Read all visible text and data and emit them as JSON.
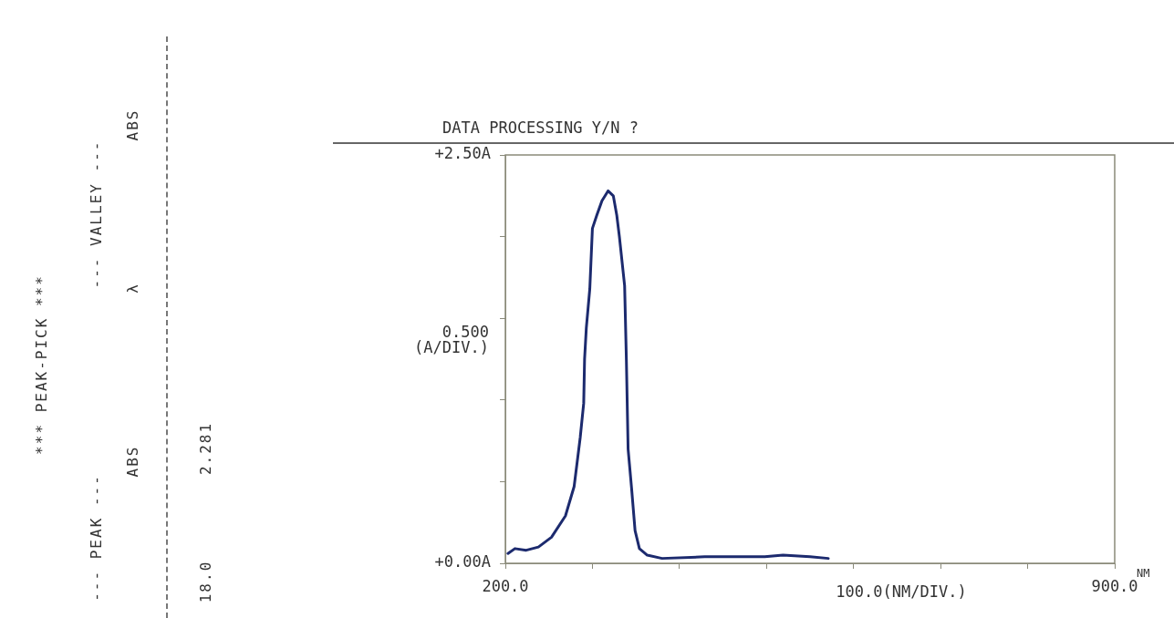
{
  "chart_data": {
    "type": "line",
    "title": "DATA PROCESSING Y/N ?",
    "xlabel": "100.0(NM/DIV.)",
    "ylabel": "0.500\n(A/DIV.)",
    "annotations": [
      "*** PEAK-PICK ***",
      "--- PEAK ---",
      "--- VALLEY ---",
      "ABS",
      "λ",
      "ABS",
      "18.0",
      "2.281",
      "NM"
    ],
    "xlim": [
      200,
      900
    ],
    "xticks": [
      {
        "value": 200,
        "label": "200.0"
      },
      {
        "value": 300,
        "label": null
      },
      {
        "value": 400,
        "label": null
      },
      {
        "value": 500,
        "label": null
      },
      {
        "value": 600,
        "label": null
      },
      {
        "value": 700,
        "label": null
      },
      {
        "value": 800,
        "label": null
      },
      {
        "value": 900,
        "label": "900.0"
      }
    ],
    "ylim": [
      0,
      2.5
    ],
    "yticks": [
      {
        "value": 0,
        "label": "+0.00A"
      },
      {
        "value": 0.5,
        "label": null
      },
      {
        "value": 1,
        "label": null
      },
      {
        "value": 1.5,
        "label": null
      },
      {
        "value": 2,
        "label": null
      },
      {
        "value": 2.5,
        "label": "+2.50A"
      }
    ],
    "grid": false,
    "legend": false,
    "marker": "none",
    "line_style": "solid",
    "series": [
      {
        "color": "#1c2a6e",
        "x": [
          203,
          211,
          224,
          238,
          253,
          269,
          279,
          286,
          290,
          291,
          293,
          297,
          300,
          305,
          311,
          318,
          324,
          328,
          331,
          337,
          339,
          341,
          345,
          349,
          354,
          363,
          380,
          429,
          498,
          519,
          550,
          571
        ],
        "values": [
          0.06,
          0.09,
          0.08,
          0.1,
          0.16,
          0.29,
          0.47,
          0.77,
          0.98,
          1.25,
          1.44,
          1.68,
          2.05,
          2.13,
          2.22,
          2.28,
          2.25,
          2.13,
          2.0,
          1.7,
          1.25,
          0.7,
          0.46,
          0.2,
          0.09,
          0.05,
          0.03,
          0.04,
          0.04,
          0.05,
          0.04,
          0.03
        ]
      }
    ]
  }
}
